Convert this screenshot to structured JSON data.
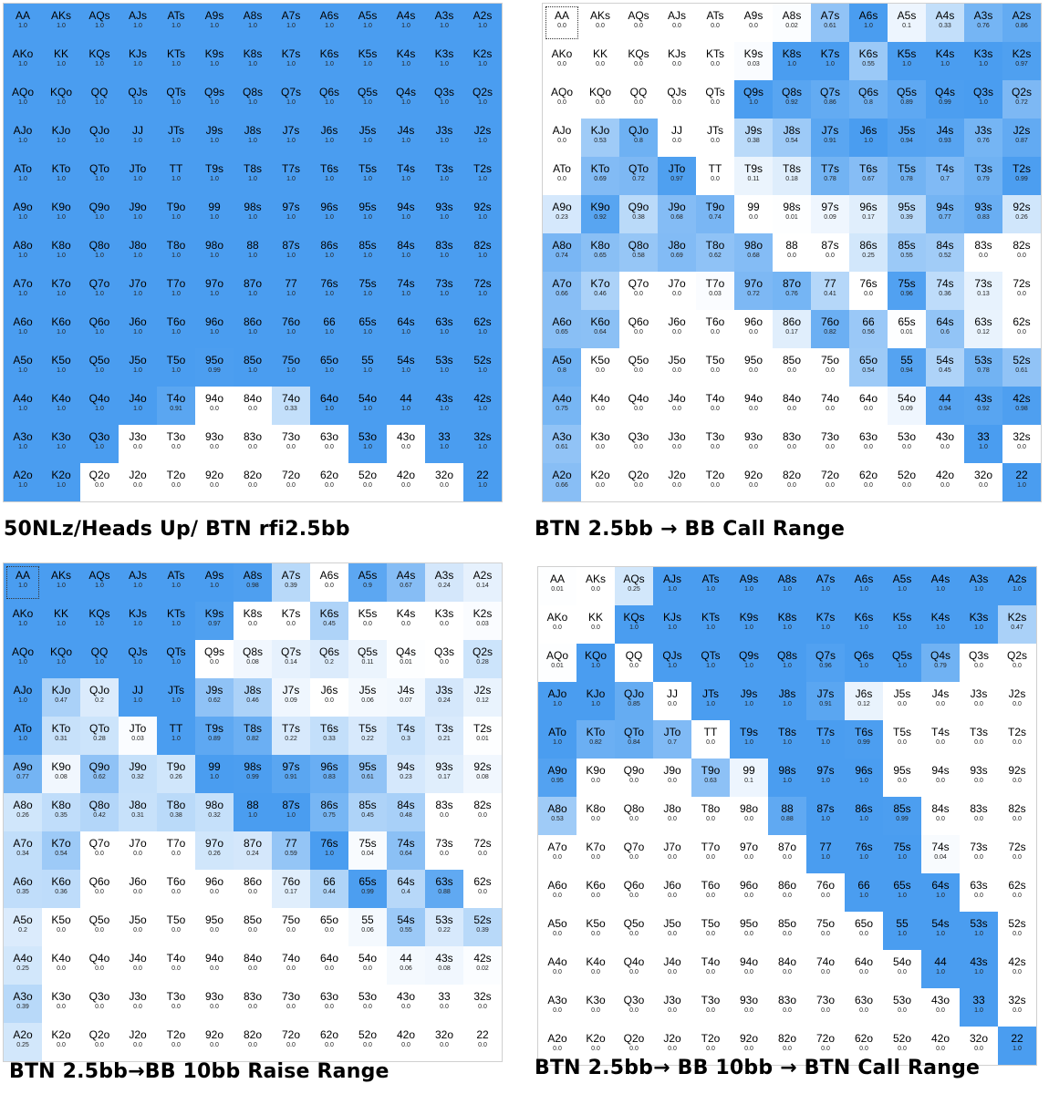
{
  "ranks": [
    "A",
    "K",
    "Q",
    "J",
    "T",
    "9",
    "8",
    "7",
    "6",
    "5",
    "4",
    "3",
    "2"
  ],
  "colors": {
    "full": "#4a9df0",
    "empty": "#ffffff"
  },
  "chart_data": [
    {
      "type": "heatmap",
      "title": "50NLz/Heads Up/ BTN rfi2.5bb",
      "selected": "",
      "freq": [
        [
          1.0,
          1.0,
          1.0,
          1.0,
          1.0,
          1.0,
          1.0,
          1.0,
          1.0,
          1.0,
          1.0,
          1.0,
          1.0
        ],
        [
          1.0,
          1.0,
          1.0,
          1.0,
          1.0,
          1.0,
          1.0,
          1.0,
          1.0,
          1.0,
          1.0,
          1.0,
          1.0
        ],
        [
          1.0,
          1.0,
          1.0,
          1.0,
          1.0,
          1.0,
          1.0,
          1.0,
          1.0,
          1.0,
          1.0,
          1.0,
          1.0
        ],
        [
          1.0,
          1.0,
          1.0,
          1.0,
          1.0,
          1.0,
          1.0,
          1.0,
          1.0,
          1.0,
          1.0,
          1.0,
          1.0
        ],
        [
          1.0,
          1.0,
          1.0,
          1.0,
          1.0,
          1.0,
          1.0,
          1.0,
          1.0,
          1.0,
          1.0,
          1.0,
          1.0
        ],
        [
          1.0,
          1.0,
          1.0,
          1.0,
          1.0,
          1.0,
          1.0,
          1.0,
          1.0,
          1.0,
          1.0,
          1.0,
          1.0
        ],
        [
          1.0,
          1.0,
          1.0,
          1.0,
          1.0,
          1.0,
          1.0,
          1.0,
          1.0,
          1.0,
          1.0,
          1.0,
          1.0
        ],
        [
          1.0,
          1.0,
          1.0,
          1.0,
          1.0,
          1.0,
          1.0,
          1.0,
          1.0,
          1.0,
          1.0,
          1.0,
          1.0
        ],
        [
          1.0,
          1.0,
          1.0,
          1.0,
          1.0,
          1.0,
          1.0,
          1.0,
          1.0,
          1.0,
          1.0,
          1.0,
          1.0
        ],
        [
          1.0,
          1.0,
          1.0,
          1.0,
          1.0,
          0.99,
          1.0,
          1.0,
          1.0,
          1.0,
          1.0,
          1.0,
          1.0
        ],
        [
          1.0,
          1.0,
          1.0,
          1.0,
          0.91,
          0.0,
          0.0,
          0.33,
          1.0,
          1.0,
          1.0,
          1.0,
          1.0
        ],
        [
          1.0,
          1.0,
          1.0,
          0.0,
          0.0,
          0.0,
          0.0,
          0.0,
          0.0,
          1.0,
          0.0,
          1.0,
          1.0
        ],
        [
          1.0,
          1.0,
          0.0,
          0.0,
          0.0,
          0.0,
          0.0,
          0.0,
          0.0,
          0.0,
          0.0,
          0.0,
          1.0
        ]
      ]
    },
    {
      "type": "heatmap",
      "title": "BTN 2.5bb → BB Call Range",
      "selected": "AA",
      "freq": [
        [
          0.0,
          0.0,
          0.0,
          0.0,
          0.0,
          0.0,
          0.02,
          0.61,
          1.0,
          0.1,
          0.33,
          0.76,
          0.86
        ],
        [
          0.0,
          0.0,
          0.0,
          0.0,
          0.0,
          0.03,
          1.0,
          1.0,
          0.55,
          1.0,
          1.0,
          1.0,
          0.97
        ],
        [
          0.0,
          0.0,
          0.0,
          0.0,
          0.0,
          1.0,
          0.92,
          0.86,
          0.8,
          0.89,
          0.99,
          1.0,
          0.72
        ],
        [
          0.0,
          0.53,
          0.8,
          0.0,
          0.0,
          0.38,
          0.54,
          0.91,
          1.0,
          0.94,
          0.93,
          0.76,
          0.87
        ],
        [
          0.0,
          0.69,
          0.72,
          0.97,
          0.0,
          0.11,
          0.18,
          0.78,
          0.67,
          0.78,
          0.7,
          0.79,
          0.99
        ],
        [
          0.23,
          0.92,
          0.38,
          0.68,
          0.74,
          0.0,
          0.01,
          0.09,
          0.17,
          0.39,
          0.77,
          0.83,
          0.26
        ],
        [
          0.74,
          0.65,
          0.58,
          0.69,
          0.62,
          0.68,
          0.0,
          0.0,
          0.25,
          0.55,
          0.52,
          0.0,
          0.0
        ],
        [
          0.66,
          0.46,
          0.0,
          0.0,
          0.03,
          0.72,
          0.76,
          0.41,
          0.0,
          0.96,
          0.36,
          0.13,
          0.0
        ],
        [
          0.65,
          0.64,
          0.0,
          0.0,
          0.0,
          0.0,
          0.17,
          0.82,
          0.56,
          0.01,
          0.6,
          0.12,
          0.0
        ],
        [
          0.8,
          0.0,
          0.0,
          0.0,
          0.0,
          0.0,
          0.0,
          0.0,
          0.54,
          0.94,
          0.45,
          0.78,
          0.61
        ],
        [
          0.75,
          0.0,
          0.0,
          0.0,
          0.0,
          0.0,
          0.0,
          0.0,
          0.0,
          0.09,
          0.94,
          0.92,
          0.98
        ],
        [
          0.61,
          0.0,
          0.0,
          0.0,
          0.0,
          0.0,
          0.0,
          0.0,
          0.0,
          0.0,
          0.0,
          1.0,
          0.0
        ],
        [
          0.66,
          0.0,
          0.0,
          0.0,
          0.0,
          0.0,
          0.0,
          0.0,
          0.0,
          0.0,
          0.0,
          0.0,
          1.0
        ]
      ]
    },
    {
      "type": "heatmap",
      "title": "BTN 2.5bb→BB 10bb Raise Range",
      "selected": "AA",
      "freq": [
        [
          1.0,
          1.0,
          1.0,
          1.0,
          1.0,
          1.0,
          0.98,
          0.39,
          0.0,
          0.9,
          0.67,
          0.24,
          0.14
        ],
        [
          1.0,
          1.0,
          1.0,
          1.0,
          1.0,
          0.97,
          0.0,
          0.0,
          0.45,
          0.0,
          0.0,
          0.0,
          0.03
        ],
        [
          1.0,
          1.0,
          1.0,
          1.0,
          1.0,
          0.0,
          0.08,
          0.14,
          0.2,
          0.11,
          0.01,
          0.0,
          0.28
        ],
        [
          1.0,
          0.47,
          0.2,
          1.0,
          1.0,
          0.62,
          0.46,
          0.09,
          0.0,
          0.06,
          0.07,
          0.24,
          0.12
        ],
        [
          1.0,
          0.31,
          0.28,
          0.03,
          1.0,
          0.89,
          0.82,
          0.22,
          0.33,
          0.22,
          0.3,
          0.21,
          0.01
        ],
        [
          0.77,
          0.08,
          0.62,
          0.32,
          0.26,
          1.0,
          0.99,
          0.91,
          0.83,
          0.61,
          0.23,
          0.17,
          0.08
        ],
        [
          0.26,
          0.35,
          0.42,
          0.31,
          0.38,
          0.32,
          1.0,
          1.0,
          0.75,
          0.45,
          0.48,
          0.0,
          0.0
        ],
        [
          0.34,
          0.54,
          0.0,
          0.0,
          0.0,
          0.26,
          0.24,
          0.59,
          1.0,
          0.04,
          0.64,
          0.0,
          0.0
        ],
        [
          0.35,
          0.36,
          0.0,
          0.0,
          0.0,
          0.0,
          0.0,
          0.17,
          0.44,
          0.99,
          0.4,
          0.88,
          0.0
        ],
        [
          0.2,
          0.0,
          0.0,
          0.0,
          0.0,
          0.0,
          0.0,
          0.0,
          0.0,
          0.06,
          0.55,
          0.22,
          0.39
        ],
        [
          0.25,
          0.0,
          0.0,
          0.0,
          0.0,
          0.0,
          0.0,
          0.0,
          0.0,
          0.0,
          0.06,
          0.08,
          0.02
        ],
        [
          0.39,
          0.0,
          0.0,
          0.0,
          0.0,
          0.0,
          0.0,
          0.0,
          0.0,
          0.0,
          0.0,
          0.0,
          0.0
        ],
        [
          0.25,
          0.0,
          0.0,
          0.0,
          0.0,
          0.0,
          0.0,
          0.0,
          0.0,
          0.0,
          0.0,
          0.0,
          0.0
        ]
      ]
    },
    {
      "type": "heatmap",
      "title": "BTN 2.5bb→ BB 10bb → BTN Call Range",
      "selected": "",
      "freq": [
        [
          0.01,
          0.0,
          0.25,
          1.0,
          1.0,
          1.0,
          1.0,
          1.0,
          1.0,
          1.0,
          1.0,
          1.0,
          1.0
        ],
        [
          0.0,
          0.0,
          1.0,
          1.0,
          1.0,
          1.0,
          1.0,
          1.0,
          1.0,
          1.0,
          1.0,
          1.0,
          0.47
        ],
        [
          0.01,
          1.0,
          0.0,
          1.0,
          1.0,
          1.0,
          1.0,
          0.96,
          1.0,
          1.0,
          0.79,
          0.0,
          0.0
        ],
        [
          1.0,
          1.0,
          0.85,
          0.0,
          1.0,
          1.0,
          1.0,
          0.91,
          0.12,
          0.0,
          0.0,
          0.0,
          0.0
        ],
        [
          1.0,
          0.82,
          0.84,
          0.7,
          0.0,
          1.0,
          1.0,
          1.0,
          0.99,
          0.0,
          0.0,
          0.0,
          0.0
        ],
        [
          0.95,
          0.0,
          0.0,
          0.0,
          0.63,
          0.1,
          1.0,
          1.0,
          1.0,
          0.0,
          0.0,
          0.0,
          0.0
        ],
        [
          0.53,
          0.0,
          0.0,
          0.0,
          0.0,
          0.0,
          0.88,
          1.0,
          1.0,
          0.99,
          0.0,
          0.0,
          0.0
        ],
        [
          0.0,
          0.0,
          0.0,
          0.0,
          0.0,
          0.0,
          0.0,
          1.0,
          1.0,
          1.0,
          0.04,
          0.0,
          0.0
        ],
        [
          0.0,
          0.0,
          0.0,
          0.0,
          0.0,
          0.0,
          0.0,
          0.0,
          1.0,
          1.0,
          1.0,
          0.0,
          0.0
        ],
        [
          0.0,
          0.0,
          0.0,
          0.0,
          0.0,
          0.0,
          0.0,
          0.0,
          0.0,
          1.0,
          1.0,
          1.0,
          0.0
        ],
        [
          0.0,
          0.0,
          0.0,
          0.0,
          0.0,
          0.0,
          0.0,
          0.0,
          0.0,
          0.0,
          1.0,
          1.0,
          0.0
        ],
        [
          0.0,
          0.0,
          0.0,
          0.0,
          0.0,
          0.0,
          0.0,
          0.0,
          0.0,
          0.0,
          0.0,
          1.0,
          0.0
        ],
        [
          0.0,
          0.0,
          0.0,
          0.0,
          0.0,
          0.0,
          0.0,
          0.0,
          0.0,
          0.0,
          0.0,
          0.0,
          1.0
        ]
      ]
    }
  ]
}
